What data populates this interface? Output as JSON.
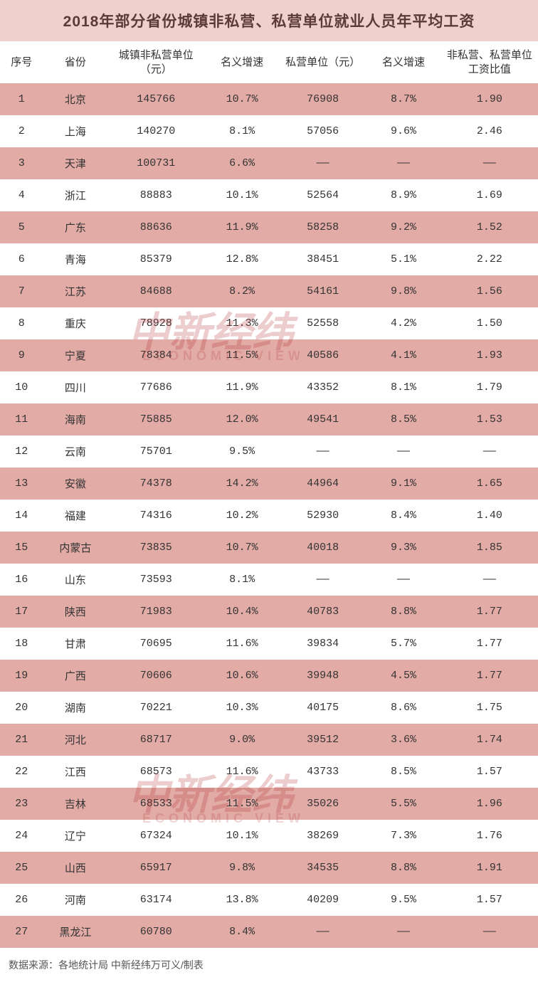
{
  "title": "2018年部分省份城镇非私营、私营单位就业人员年平均工资",
  "columns": {
    "idx": "序号",
    "province": "省份",
    "nonprivate": "城镇非私营单位（元）",
    "growth1": "名义增速",
    "private": "私营单位（元）",
    "growth2": "名义增速",
    "ratio": "非私营、私营单位工资比值"
  },
  "rows": [
    {
      "idx": "1",
      "prov": "北京",
      "np": "145766",
      "g1": "10.7%",
      "p": "76908",
      "g2": "8.7%",
      "r": "1.90"
    },
    {
      "idx": "2",
      "prov": "上海",
      "np": "140270",
      "g1": "8.1%",
      "p": "57056",
      "g2": "9.6%",
      "r": "2.46"
    },
    {
      "idx": "3",
      "prov": "天津",
      "np": "100731",
      "g1": "6.6%",
      "p": "——",
      "g2": "——",
      "r": "——"
    },
    {
      "idx": "4",
      "prov": "浙江",
      "np": "88883",
      "g1": "10.1%",
      "p": "52564",
      "g2": "8.9%",
      "r": "1.69"
    },
    {
      "idx": "5",
      "prov": "广东",
      "np": "88636",
      "g1": "11.9%",
      "p": "58258",
      "g2": "9.2%",
      "r": "1.52"
    },
    {
      "idx": "6",
      "prov": "青海",
      "np": "85379",
      "g1": "12.8%",
      "p": "38451",
      "g2": "5.1%",
      "r": "2.22"
    },
    {
      "idx": "7",
      "prov": "江苏",
      "np": "84688",
      "g1": "8.2%",
      "p": "54161",
      "g2": "9.8%",
      "r": "1.56"
    },
    {
      "idx": "8",
      "prov": "重庆",
      "np": "78928",
      "g1": "11.3%",
      "p": "52558",
      "g2": "4.2%",
      "r": "1.50"
    },
    {
      "idx": "9",
      "prov": "宁夏",
      "np": "78384",
      "g1": "11.5%",
      "p": "40586",
      "g2": "4.1%",
      "r": "1.93"
    },
    {
      "idx": "10",
      "prov": "四川",
      "np": "77686",
      "g1": "11.9%",
      "p": "43352",
      "g2": "8.1%",
      "r": "1.79"
    },
    {
      "idx": "11",
      "prov": "海南",
      "np": "75885",
      "g1": "12.0%",
      "p": "49541",
      "g2": "8.5%",
      "r": "1.53"
    },
    {
      "idx": "12",
      "prov": "云南",
      "np": "75701",
      "g1": "9.5%",
      "p": "——",
      "g2": "——",
      "r": "——"
    },
    {
      "idx": "13",
      "prov": "安徽",
      "np": "74378",
      "g1": "14.2%",
      "p": "44964",
      "g2": "9.1%",
      "r": "1.65"
    },
    {
      "idx": "14",
      "prov": "福建",
      "np": "74316",
      "g1": "10.2%",
      "p": "52930",
      "g2": "8.4%",
      "r": "1.40"
    },
    {
      "idx": "15",
      "prov": "内蒙古",
      "np": "73835",
      "g1": "10.7%",
      "p": "40018",
      "g2": "9.3%",
      "r": "1.85"
    },
    {
      "idx": "16",
      "prov": "山东",
      "np": "73593",
      "g1": "8.1%",
      "p": "——",
      "g2": "——",
      "r": "——"
    },
    {
      "idx": "17",
      "prov": "陕西",
      "np": "71983",
      "g1": "10.4%",
      "p": "40783",
      "g2": "8.8%",
      "r": "1.77"
    },
    {
      "idx": "18",
      "prov": "甘肃",
      "np": "70695",
      "g1": "11.6%",
      "p": "39834",
      "g2": "5.7%",
      "r": "1.77"
    },
    {
      "idx": "19",
      "prov": "广西",
      "np": "70606",
      "g1": "10.6%",
      "p": "39948",
      "g2": "4.5%",
      "r": "1.77"
    },
    {
      "idx": "20",
      "prov": "湖南",
      "np": "70221",
      "g1": "10.3%",
      "p": "40175",
      "g2": "8.6%",
      "r": "1.75"
    },
    {
      "idx": "21",
      "prov": "河北",
      "np": "68717",
      "g1": "9.0%",
      "p": "39512",
      "g2": "3.6%",
      "r": "1.74"
    },
    {
      "idx": "22",
      "prov": "江西",
      "np": "68573",
      "g1": "11.6%",
      "p": "43733",
      "g2": "8.5%",
      "r": "1.57"
    },
    {
      "idx": "23",
      "prov": "吉林",
      "np": "68533",
      "g1": "11.5%",
      "p": "35026",
      "g2": "5.5%",
      "r": "1.96"
    },
    {
      "idx": "24",
      "prov": "辽宁",
      "np": "67324",
      "g1": "10.1%",
      "p": "38269",
      "g2": "7.3%",
      "r": "1.76"
    },
    {
      "idx": "25",
      "prov": "山西",
      "np": "65917",
      "g1": "9.8%",
      "p": "34535",
      "g2": "8.8%",
      "r": "1.91"
    },
    {
      "idx": "26",
      "prov": "河南",
      "np": "63174",
      "g1": "13.8%",
      "p": "40209",
      "g2": "9.5%",
      "r": "1.57"
    },
    {
      "idx": "27",
      "prov": "黑龙江",
      "np": "60780",
      "g1": "8.4%",
      "p": "——",
      "g2": "——",
      "r": "——"
    }
  ],
  "footer": "数据来源：各地统计局 中新经纬万可义/制表",
  "watermark_main": "中新经纬",
  "watermark_sub": "ECONOMIC VIEW",
  "styling": {
    "title_bg": "#efd0cd",
    "title_color": "#5b3a38",
    "row_odd_bg": "#e2aba6",
    "row_even_bg": "#ffffff",
    "header_bg": "#ffffff",
    "text_color": "#333333",
    "watermark_color": "rgba(180,50,50,0.25)",
    "title_fontsize": 21,
    "cell_fontsize": 15,
    "footer_fontsize": 14
  }
}
